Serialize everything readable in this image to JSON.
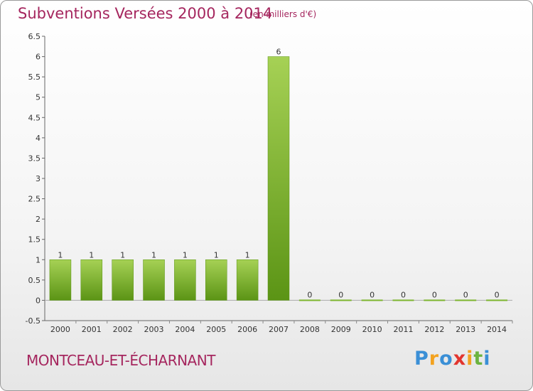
{
  "chart_data": {
    "type": "bar",
    "title": "Subventions Versées 2000 à 2014",
    "subtitle": "(en milliers d'€)",
    "categories": [
      "2000",
      "2001",
      "2002",
      "2003",
      "2004",
      "2005",
      "2006",
      "2007",
      "2008",
      "2009",
      "2010",
      "2011",
      "2012",
      "2013",
      "2014"
    ],
    "values": [
      1,
      1,
      1,
      1,
      1,
      1,
      1,
      6,
      0,
      0,
      0,
      0,
      0,
      0,
      0
    ],
    "data_labels": [
      "1",
      "1",
      "1",
      "1",
      "1",
      "1",
      "1",
      "6",
      "0",
      "0",
      "0",
      "0",
      "0",
      "0",
      "0"
    ],
    "ylim": [
      -0.5,
      6.5
    ],
    "yticks": [
      -0.5,
      0,
      0.5,
      1,
      1.5,
      2,
      2.5,
      3,
      3.5,
      4,
      4.5,
      5,
      5.5,
      6,
      6.5
    ],
    "ytick_labels": [
      "-0.5",
      "0",
      "0.5",
      "1",
      "1.5",
      "2",
      "2.5",
      "3",
      "3.5",
      "4",
      "4.5",
      "5",
      "5.5",
      "6",
      "6.5"
    ],
    "xlabel": "",
    "ylabel": "",
    "grid": false,
    "bar_color": "#7db52e",
    "bar_color_light": "#a6d155",
    "bar_color_dark": "#5b9415"
  },
  "location_name": "MONTCEAU-ET-ÉCHARNANT",
  "brand": {
    "letters": [
      "P",
      "r",
      "o",
      "x",
      "i",
      "t",
      "i"
    ],
    "colors": [
      "#3a8fd6",
      "#f3a21f",
      "#3a8fd6",
      "#e2352e",
      "#f3a21f",
      "#6cb33f",
      "#3a8fd6"
    ]
  }
}
